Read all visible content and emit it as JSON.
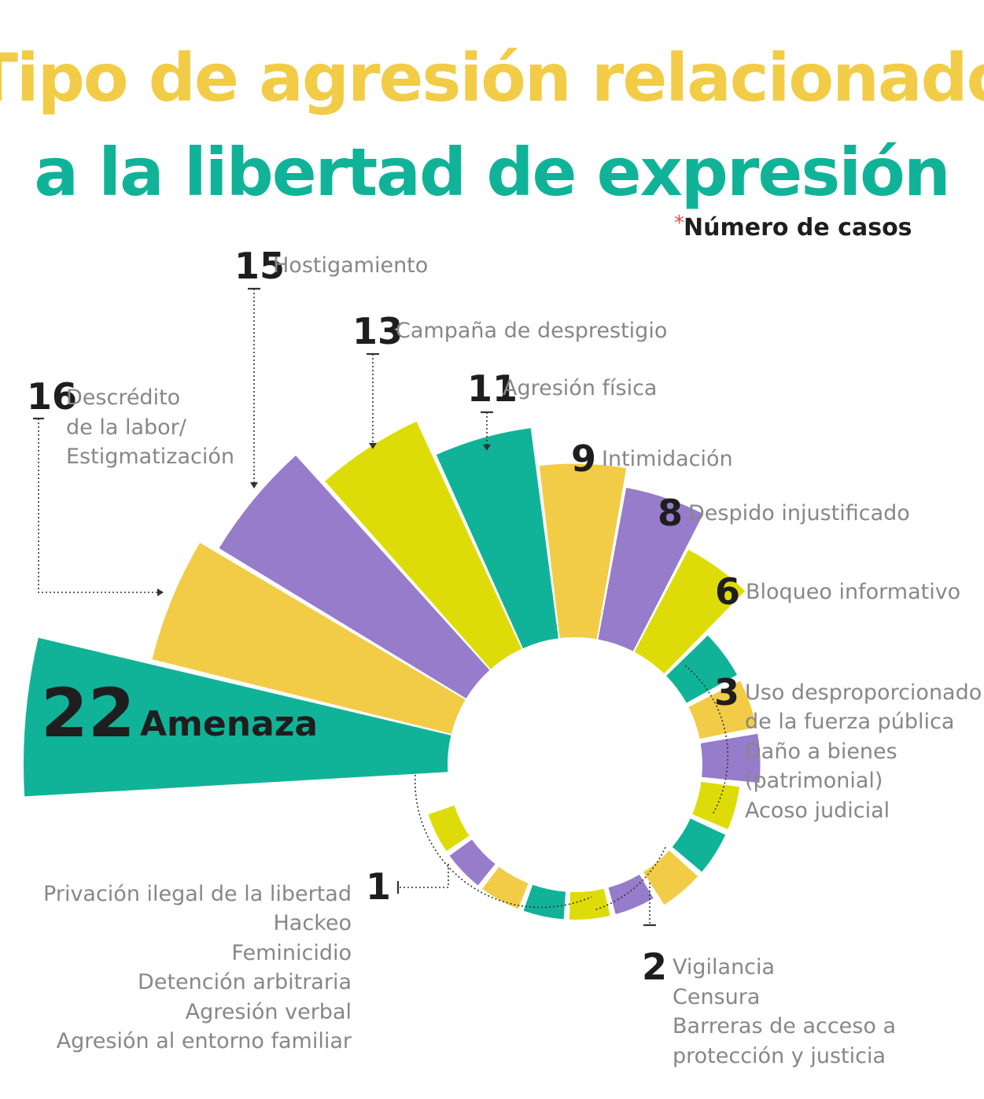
{
  "title_line1": "Tipo de agresión relacionado",
  "title_line2": "a la libertad de expresión",
  "subtitle_asterisk": "*",
  "subtitle": "Número de casos",
  "colors": {
    "teal": "#10b398",
    "yellow": "#f2cc46",
    "purple": "#967cca",
    "lime": "#dedc08",
    "title_yellow": "#f2cc46",
    "title_teal": "#10b398"
  },
  "chart_data": {
    "type": "bar",
    "layout": "radial",
    "unit": "Número de casos",
    "categories": [
      "Amenaza",
      "Descrédito de la labor/ Estigmatización",
      "Hostigamiento",
      "Campaña de desprestigio",
      "Agresión física",
      "Intimidación",
      "Despido injustificado",
      "Bloqueo informativo",
      "Uso desproporcionado de la fuerza pública",
      "Daño a bienes (patrimonial)",
      "Acoso judicial",
      "Vigilancia",
      "Censura",
      "Barreras de acceso a protección y justicia",
      "Privación ilegal de la libertad",
      "Hackeo",
      "Feminicidio",
      "Detención arbitraria",
      "Agresión verbal",
      "Agresión al entorno familiar"
    ],
    "values": [
      22,
      16,
      15,
      13,
      11,
      9,
      8,
      6,
      3,
      3,
      3,
      2,
      2,
      2,
      1,
      1,
      1,
      1,
      1,
      1
    ]
  },
  "groups": [
    {
      "value": "22",
      "lines": [
        "Amenaza"
      ]
    },
    {
      "value": "16",
      "lines": [
        "Descrédito",
        "de la labor/",
        "Estigmatización"
      ]
    },
    {
      "value": "15",
      "lines": [
        "Hostigamiento"
      ]
    },
    {
      "value": "13",
      "lines": [
        "Campaña de desprestigio"
      ]
    },
    {
      "value": "11",
      "lines": [
        "Agresión física"
      ]
    },
    {
      "value": "9",
      "lines": [
        "Intimidación"
      ]
    },
    {
      "value": "8",
      "lines": [
        "Despido injustificado"
      ]
    },
    {
      "value": "6",
      "lines": [
        "Bloqueo informativo"
      ]
    },
    {
      "value": "3",
      "lines": [
        "Uso desproporcionado",
        "de la fuerza pública",
        "Daño a bienes",
        "(patrimonial)",
        "Acoso judicial"
      ]
    },
    {
      "value": "2",
      "lines": [
        "Vigilancia",
        "Censura",
        "Barreras de acceso a",
        "protección y justicia"
      ]
    },
    {
      "value": "1",
      "lines": [
        "Privación ilegal de la libertad",
        "Hackeo",
        "Feminicidio",
        "Detención arbitraria",
        "Agresión verbal",
        "Agresión al entorno familiar"
      ]
    }
  ]
}
